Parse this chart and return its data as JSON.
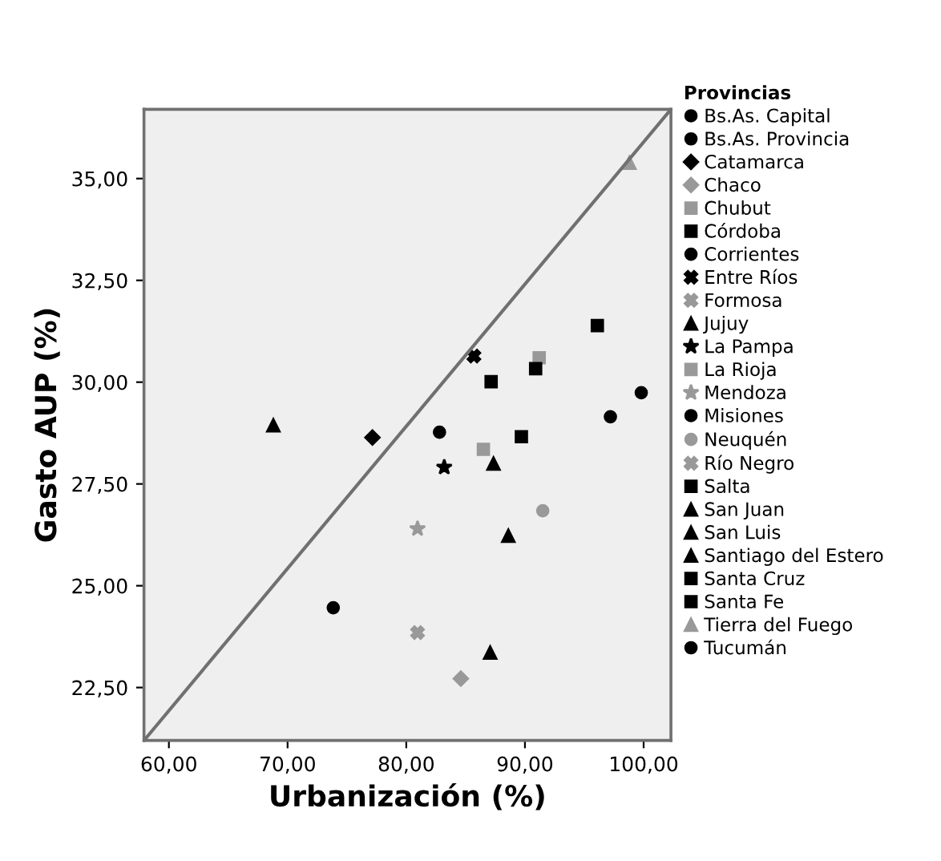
{
  "chart_data": {
    "type": "scatter",
    "xlabel": "Urbanización (%)",
    "ylabel": "Gasto AUP (%)",
    "legend_title": "Provincias",
    "legend": "right",
    "grid": false,
    "xlim": [
      57.9,
      102.3
    ],
    "ylim": [
      21.2,
      36.7
    ],
    "xticks": [
      {
        "value": 60,
        "label": "60,00"
      },
      {
        "value": 70,
        "label": "70,00"
      },
      {
        "value": 80,
        "label": "80,00"
      },
      {
        "value": 90,
        "label": "90,00"
      },
      {
        "value": 100,
        "label": "100,00"
      }
    ],
    "yticks": [
      {
        "value": 22.5,
        "label": "22,50"
      },
      {
        "value": 25,
        "label": "25,00"
      },
      {
        "value": 27.5,
        "label": "27,50"
      },
      {
        "value": 30,
        "label": "30,00"
      },
      {
        "value": 32.5,
        "label": "32,50"
      },
      {
        "value": 35,
        "label": "35,00"
      }
    ],
    "series": [
      {
        "name": "Bs.As. Capital",
        "color": "#000000",
        "marker": "circle",
        "x": [
          99.8
        ],
        "values": [
          29.74
        ]
      },
      {
        "name": "Bs.As. Provincia",
        "color": "#000000",
        "marker": "circle",
        "x": [
          97.2
        ],
        "values": [
          29.15
        ]
      },
      {
        "name": "Catamarca",
        "color": "#000000",
        "marker": "diamond",
        "x": [
          77.15
        ],
        "values": [
          28.64
        ]
      },
      {
        "name": "Chaco",
        "color": "#999999",
        "marker": "diamond",
        "x": [
          84.6
        ],
        "values": [
          22.72
        ]
      },
      {
        "name": "Chubut",
        "color": "#999999",
        "marker": "square",
        "x": [
          91.2
        ],
        "values": [
          30.6
        ]
      },
      {
        "name": "Córdoba",
        "color": "#000000",
        "marker": "square",
        "x": [
          89.7
        ],
        "values": [
          28.66
        ]
      },
      {
        "name": "Corrientes",
        "color": "#000000",
        "marker": "circle",
        "x": [
          82.8
        ],
        "values": [
          28.77
        ]
      },
      {
        "name": "Entre Ríos",
        "color": "#000000",
        "marker": "cross",
        "x": [
          85.7
        ],
        "values": [
          30.64
        ]
      },
      {
        "name": "Formosa",
        "color": "#999999",
        "marker": "cross",
        "x": [
          80.95
        ],
        "values": [
          23.85
        ]
      },
      {
        "name": "Jujuy",
        "color": "#000000",
        "marker": "triangle",
        "x": [
          87.35
        ],
        "values": [
          28.0
        ]
      },
      {
        "name": "La Pampa",
        "color": "#000000",
        "marker": "star",
        "x": [
          83.2
        ],
        "values": [
          27.91
        ]
      },
      {
        "name": "La Rioja",
        "color": "#999999",
        "marker": "square",
        "x": [
          86.5
        ],
        "values": [
          28.35
        ]
      },
      {
        "name": "Mendoza",
        "color": "#999999",
        "marker": "star",
        "x": [
          80.95
        ],
        "values": [
          26.4
        ]
      },
      {
        "name": "Misiones",
        "color": "#000000",
        "marker": "circle",
        "x": [
          73.85
        ],
        "values": [
          24.46
        ]
      },
      {
        "name": "Neuquén",
        "color": "#999999",
        "marker": "circle",
        "x": [
          91.5
        ],
        "values": [
          26.84
        ]
      },
      {
        "name": "Río Negro",
        "color": "#999999",
        "marker": "cross",
        "x": [
          null
        ],
        "values": [
          null
        ]
      },
      {
        "name": "Salta",
        "color": "#000000",
        "marker": "square",
        "x": [
          87.15
        ],
        "values": [
          30.01
        ]
      },
      {
        "name": "San Juan",
        "color": "#000000",
        "marker": "triangle",
        "x": [
          87.07
        ],
        "values": [
          23.36
        ]
      },
      {
        "name": "San Luis",
        "color": "#000000",
        "marker": "triangle",
        "x": [
          88.6
        ],
        "values": [
          26.23
        ]
      },
      {
        "name": "Santiago del Estero",
        "color": "#000000",
        "marker": "triangle",
        "x": [
          68.8
        ],
        "values": [
          28.94
        ]
      },
      {
        "name": "Santa Cruz",
        "color": "#000000",
        "marker": "square",
        "x": [
          96.1
        ],
        "values": [
          31.39
        ]
      },
      {
        "name": "Santa Fe",
        "color": "#000000",
        "marker": "square",
        "x": [
          90.9
        ],
        "values": [
          30.33
        ]
      },
      {
        "name": "Tierra del Fuego",
        "color": "#999999",
        "marker": "triangle",
        "x": [
          98.8
        ],
        "values": [
          35.39
        ]
      },
      {
        "name": "Tucumán",
        "color": "#000000",
        "marker": "circle",
        "x": [
          null
        ],
        "values": [
          null
        ]
      },
      {
        "type": "line",
        "color": "#707070",
        "marker": "none",
        "x": [
          57.9,
          102.3
        ],
        "values": [
          21.2,
          36.7
        ]
      }
    ]
  }
}
